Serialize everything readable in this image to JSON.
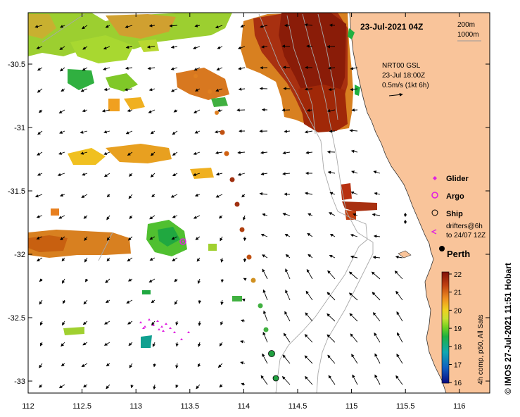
{
  "map": {
    "title": "23-Jul-2021 04Z",
    "contours": {
      "c1": "200m",
      "c2": "1000m"
    },
    "currents": {
      "line1": "NRT00 GSL",
      "line2": "23-Jul 18:00Z",
      "line3": "0.5m/s (1kt 6h)"
    },
    "lon_ticks": [
      "112",
      "112.5",
      "113",
      "113.5",
      "114",
      "114.5",
      "115",
      "115.5",
      "116"
    ],
    "lat_ticks": [
      "-30.5",
      "-31",
      "-31.5",
      "-32",
      "-32.5",
      "-33"
    ],
    "legend": {
      "glider": "Glider",
      "argo": "Argo",
      "ship": "Ship",
      "drifters1": "drifters@6h",
      "drifters2": "to 24/07 12Z"
    },
    "city": "Perth",
    "colorbar": {
      "ticks": [
        "22",
        "21",
        "20",
        "19",
        "18",
        "17",
        "16"
      ],
      "label": "4h comp, p50, All Sats"
    },
    "footer": "© IMOS 27-Jul-2021 11:51 Hobart",
    "colors": {
      "land": "#f9c49a",
      "glider": "#e020e0",
      "argo": "#e020e0",
      "track": "#c05010"
    }
  }
}
